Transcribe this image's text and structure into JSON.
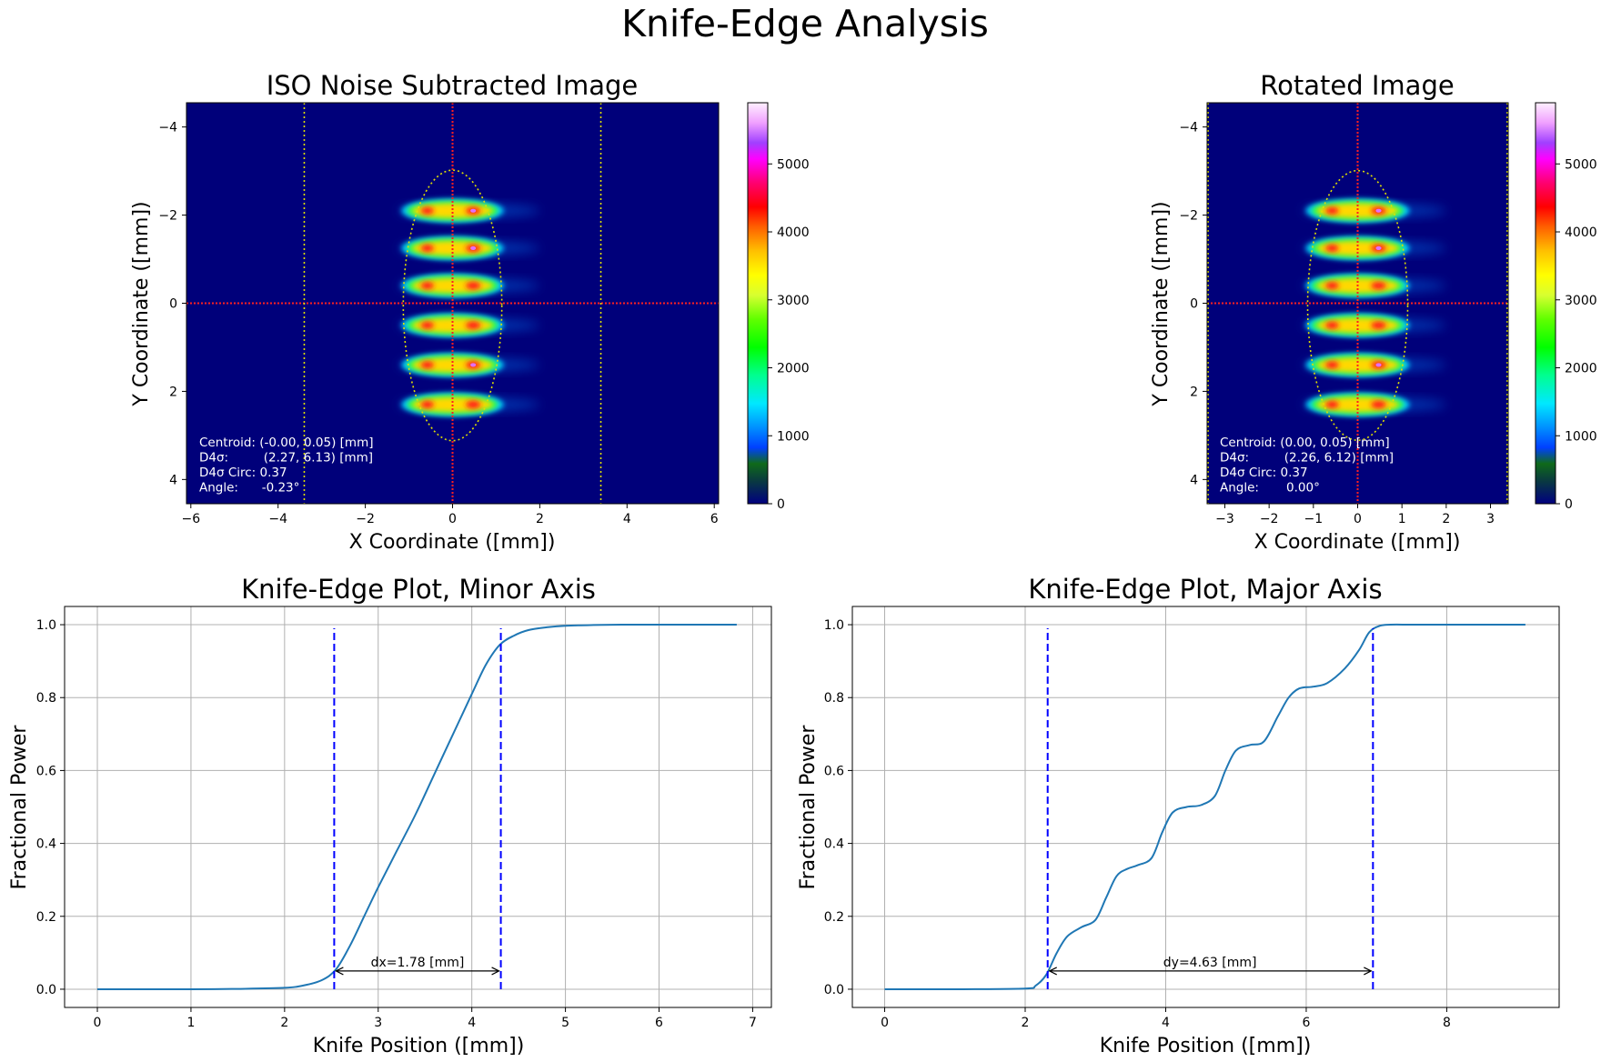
{
  "suptitle": "Knife-Edge Analysis",
  "colors": {
    "curve": "#1f77b4",
    "dashed": "#0000ff",
    "grid": "#b0b0b0",
    "crosshair": "#ff2020",
    "ellipse": "#e0e000",
    "background": "#00007a"
  },
  "chart_data": [
    {
      "type": "heatmap",
      "title": "ISO Noise Subtracted Image",
      "xlabel": "X Coordinate ([mm])",
      "ylabel": "Y Coordinate ([mm])",
      "xlim": [
        -6.1,
        6.1
      ],
      "ylim": [
        4.55,
        -4.55
      ],
      "xticks": [
        -6,
        -4,
        -2,
        0,
        2,
        4,
        6
      ],
      "yticks": [
        -4,
        -2,
        0,
        2,
        4
      ],
      "colormap": "gist_ncar",
      "colorbar_ticks": [
        0,
        1000,
        2000,
        3000,
        4000,
        5000
      ],
      "colorbar_max": 5900,
      "beam_lobes_y": [
        -2.1,
        -1.25,
        -0.4,
        0.5,
        1.4,
        2.3
      ],
      "vertical_dotted_lines_x": [
        -3.4,
        3.4
      ],
      "ellipse": {
        "cx": 0,
        "cy": 0.05,
        "rx": 1.13,
        "ry": 3.07
      },
      "annotation": [
        "Centroid: (-0.00, 0.05) [mm]",
        "D4σ:         (2.27, 6.13) [mm]",
        "D4σ Circ: 0.37",
        "Angle:      -0.23°"
      ]
    },
    {
      "type": "heatmap",
      "title": "Rotated Image",
      "xlabel": "X Coordinate ([mm])",
      "ylabel": "Y Coordinate ([mm])",
      "xlim": [
        -3.4,
        3.4
      ],
      "ylim": [
        4.55,
        -4.55
      ],
      "xticks": [
        -3,
        -2,
        -1,
        0,
        1,
        2,
        3
      ],
      "yticks": [
        -4,
        -2,
        0,
        2,
        4
      ],
      "colormap": "gist_ncar",
      "colorbar_ticks": [
        0,
        1000,
        2000,
        3000,
        4000,
        5000
      ],
      "colorbar_max": 5900,
      "beam_lobes_y": [
        -2.1,
        -1.25,
        -0.4,
        0.5,
        1.4,
        2.3
      ],
      "ellipse": {
        "cx": 0,
        "cy": 0.05,
        "rx": 1.13,
        "ry": 3.06
      },
      "annotation": [
        "Centroid: (0.00, 0.05) [mm]",
        "D4σ:         (2.26, 6.12) [mm]",
        "D4σ Circ: 0.37",
        "Angle:       0.00°"
      ]
    },
    {
      "type": "line",
      "title": "Knife-Edge Plot, Minor Axis",
      "xlabel": "Knife Position ([mm])",
      "ylabel": "Fractional Power",
      "xlim": [
        -0.35,
        7.2
      ],
      "ylim": [
        -0.05,
        1.05
      ],
      "xticks": [
        0,
        1,
        2,
        3,
        4,
        5,
        6,
        7
      ],
      "yticks": [
        0.0,
        0.2,
        0.4,
        0.6,
        0.8,
        1.0
      ],
      "grid": true,
      "x": [
        0,
        0.5,
        1.0,
        1.5,
        2.0,
        2.2,
        2.4,
        2.55,
        2.7,
        2.85,
        3.0,
        3.2,
        3.4,
        3.6,
        3.8,
        4.0,
        4.15,
        4.3,
        4.45,
        4.6,
        4.8,
        5.0,
        5.3,
        5.6,
        6.0,
        6.5,
        6.83
      ],
      "y": [
        0,
        0,
        0,
        0.001,
        0.004,
        0.01,
        0.025,
        0.055,
        0.12,
        0.2,
        0.28,
        0.38,
        0.48,
        0.59,
        0.7,
        0.81,
        0.89,
        0.945,
        0.97,
        0.985,
        0.993,
        0.997,
        0.999,
        1.0,
        1.0,
        1.0,
        1.0
      ],
      "vlines": [
        2.53,
        4.31
      ],
      "vline_range": [
        0.0,
        0.99
      ],
      "arrow": {
        "x1": 2.53,
        "x2": 4.31,
        "y": 0.05
      },
      "arrow_label": "dx=1.78 [mm]",
      "arrow_label_x": 3.42
    },
    {
      "type": "line",
      "title": "Knife-Edge Plot, Major Axis",
      "xlabel": "Knife Position ([mm])",
      "ylabel": "Fractional Power",
      "xlim": [
        -0.46,
        9.6
      ],
      "ylim": [
        -0.05,
        1.05
      ],
      "xticks": [
        0,
        2,
        4,
        6,
        8
      ],
      "yticks": [
        0.0,
        0.2,
        0.4,
        0.6,
        0.8,
        1.0
      ],
      "grid": true,
      "x": [
        0,
        1.0,
        2.0,
        2.15,
        2.3,
        2.45,
        2.6,
        2.8,
        3.0,
        3.15,
        3.3,
        3.45,
        3.6,
        3.8,
        3.95,
        4.1,
        4.3,
        4.5,
        4.7,
        4.85,
        5.0,
        5.2,
        5.4,
        5.6,
        5.75,
        5.9,
        6.1,
        6.3,
        6.55,
        6.75,
        6.9,
        7.05,
        7.2,
        7.5,
        8.0,
        9.12
      ],
      "y": [
        0,
        0,
        0.002,
        0.01,
        0.04,
        0.1,
        0.145,
        0.17,
        0.19,
        0.25,
        0.31,
        0.33,
        0.34,
        0.36,
        0.43,
        0.485,
        0.5,
        0.505,
        0.53,
        0.6,
        0.655,
        0.67,
        0.68,
        0.75,
        0.8,
        0.825,
        0.83,
        0.84,
        0.88,
        0.93,
        0.98,
        0.997,
        1.0,
        1.0,
        1.0,
        1.0
      ],
      "vlines": [
        2.32,
        6.95
      ],
      "vline_range": [
        0.0,
        0.99
      ],
      "arrow": {
        "x1": 2.32,
        "x2": 6.95,
        "y": 0.05
      },
      "arrow_label": "dy=4.63 [mm]",
      "arrow_label_x": 4.63
    }
  ]
}
